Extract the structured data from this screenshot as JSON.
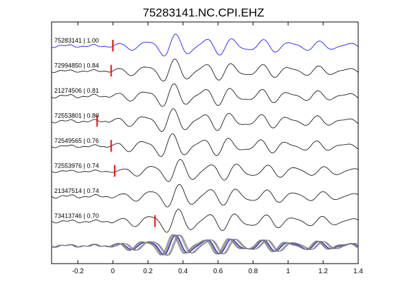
{
  "chart_data": {
    "type": "line",
    "title": "75283141.NC.CPI.EHZ",
    "xlabel": "",
    "ylabel": "",
    "xlim": [
      -0.35,
      1.4
    ],
    "xticks": [
      -0.2,
      0,
      0.2,
      0.4,
      0.6,
      0.8,
      1,
      1.2,
      1.4
    ],
    "xtick_labels": [
      "-0.2",
      "0",
      "0.2",
      "0.4",
      "0.6",
      "0.8",
      "1",
      "1.2",
      "1.4"
    ],
    "grid": false,
    "reference_trace_color": "#0000ff",
    "trace_color": "#000000",
    "stack_trace_color": "#808080",
    "pick_marker_color": "#ff0000",
    "traces": [
      {
        "label": "75283141 | 1.00",
        "pick_time": 0.0,
        "reference": true
      },
      {
        "label": "72994850 | 0.84",
        "pick_time": -0.01
      },
      {
        "label": "21274506 | 0.81",
        "pick_time": null
      },
      {
        "label": "72553801 | 0.80",
        "pick_time": -0.09
      },
      {
        "label": "72549565 | 0.76",
        "pick_time": -0.01
      },
      {
        "label": "72553976 | 0.74",
        "pick_time": 0.01
      },
      {
        "label": "21347514 | 0.74",
        "pick_time": null
      },
      {
        "label": "73413746 | 0.70",
        "pick_time": 0.24
      }
    ],
    "overlay": {
      "description_label": ""
    }
  }
}
